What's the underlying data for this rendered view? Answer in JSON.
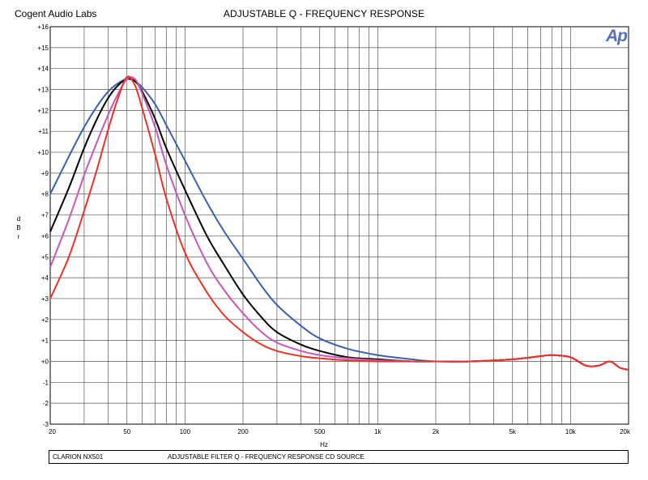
{
  "header": {
    "company": "Cogent Audio Labs",
    "title": "ADJUSTABLE Q  -  FREQUENCY RESPONSE",
    "logo_text": "Ap"
  },
  "footer": {
    "device": "CLARION NX501",
    "description": "ADJUSTABLE FILTER Q  -  FREQUENCY RESPONSE   CD SOURCE"
  },
  "chart_data": {
    "type": "line",
    "title": "ADJUSTABLE Q  -  FREQUENCY RESPONSE",
    "xlabel": "Hz",
    "ylabel": "d B r",
    "x_scale": "log",
    "xlim": [
      20,
      20000
    ],
    "ylim": [
      -3,
      16
    ],
    "grid": true,
    "x_tick_labels": [
      "20",
      "50",
      "100",
      "200",
      "500",
      "1k",
      "2k",
      "5k",
      "10k",
      "20k"
    ],
    "x_tick_values": [
      20,
      50,
      100,
      200,
      500,
      1000,
      2000,
      5000,
      10000,
      20000
    ],
    "y_tick_labels": [
      "-3",
      "-2",
      "-1",
      "+0",
      "+1",
      "+2",
      "+3",
      "+4",
      "+5",
      "+6",
      "+7",
      "+8",
      "+9",
      "+10",
      "+11",
      "+12",
      "+13",
      "+14",
      "+15",
      "+16"
    ],
    "y_tick_values": [
      -3,
      -2,
      -1,
      0,
      1,
      2,
      3,
      4,
      5,
      6,
      7,
      8,
      9,
      10,
      11,
      12,
      13,
      14,
      15,
      16
    ],
    "series": [
      {
        "color": "#3b5fb5",
        "x": [
          20,
          25,
          30,
          35,
          40,
          45,
          50,
          55,
          60,
          70,
          80,
          100,
          130,
          160,
          200,
          250,
          300,
          400,
          500,
          700,
          1000,
          1500,
          2000,
          3000,
          5000,
          7000,
          8000,
          10000,
          12000,
          14000,
          16000,
          18000,
          20000
        ],
        "y": [
          8.0,
          9.8,
          11.2,
          12.2,
          12.9,
          13.3,
          13.5,
          13.4,
          13.1,
          12.3,
          11.3,
          9.6,
          7.6,
          6.2,
          4.9,
          3.6,
          2.7,
          1.7,
          1.1,
          0.6,
          0.3,
          0.1,
          0.0,
          0.0,
          0.1,
          0.25,
          0.3,
          0.2,
          -0.2,
          -0.2,
          0.0,
          -0.3,
          -0.4
        ]
      },
      {
        "color": "#000000",
        "x": [
          20,
          25,
          30,
          35,
          40,
          45,
          50,
          55,
          60,
          70,
          80,
          100,
          130,
          160,
          200,
          250,
          300,
          400,
          500,
          700,
          1000,
          1500,
          2000,
          3000,
          5000,
          7000,
          8000,
          10000,
          12000,
          14000,
          16000,
          18000,
          20000
        ],
        "y": [
          6.2,
          8.3,
          10.2,
          11.6,
          12.6,
          13.2,
          13.5,
          13.4,
          12.9,
          11.6,
          10.2,
          8.2,
          6.0,
          4.6,
          3.2,
          2.1,
          1.4,
          0.8,
          0.5,
          0.2,
          0.1,
          0.0,
          0.0,
          0.0,
          0.1,
          0.25,
          0.3,
          0.2,
          -0.2,
          -0.2,
          0.0,
          -0.3,
          -0.4
        ]
      },
      {
        "color": "#cc55bb",
        "x": [
          20,
          25,
          30,
          35,
          40,
          45,
          50,
          55,
          60,
          70,
          80,
          100,
          130,
          160,
          200,
          250,
          300,
          400,
          500,
          700,
          1000,
          1500,
          2000,
          3000,
          5000,
          7000,
          8000,
          10000,
          12000,
          14000,
          16000,
          18000,
          20000
        ],
        "y": [
          4.5,
          6.8,
          8.9,
          10.5,
          11.8,
          12.8,
          13.5,
          13.5,
          12.8,
          11.2,
          9.4,
          7.0,
          4.7,
          3.4,
          2.3,
          1.4,
          0.9,
          0.5,
          0.3,
          0.15,
          0.05,
          0.0,
          0.0,
          0.0,
          0.1,
          0.25,
          0.3,
          0.2,
          -0.2,
          -0.2,
          0.0,
          -0.3,
          -0.4
        ]
      },
      {
        "color": "#ee3322",
        "x": [
          20,
          25,
          30,
          35,
          40,
          45,
          50,
          55,
          60,
          70,
          80,
          100,
          130,
          160,
          200,
          250,
          300,
          400,
          500,
          700,
          1000,
          1500,
          2000,
          3000,
          5000,
          7000,
          8000,
          10000,
          12000,
          14000,
          16000,
          18000,
          20000
        ],
        "y": [
          3.0,
          5.0,
          7.2,
          9.2,
          11.1,
          12.6,
          13.6,
          13.2,
          12.1,
          9.9,
          7.8,
          5.2,
          3.3,
          2.2,
          1.4,
          0.8,
          0.5,
          0.25,
          0.15,
          0.05,
          0.0,
          0.0,
          0.0,
          0.0,
          0.1,
          0.25,
          0.3,
          0.2,
          -0.2,
          -0.2,
          0.0,
          -0.3,
          -0.4
        ]
      }
    ]
  }
}
